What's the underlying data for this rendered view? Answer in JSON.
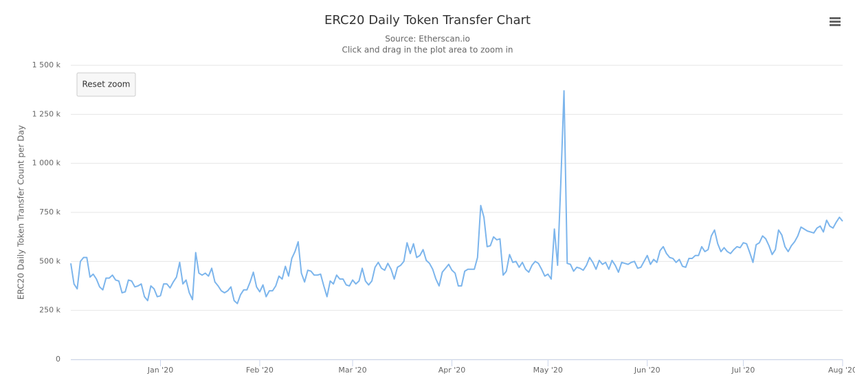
{
  "chart_data": {
    "type": "line",
    "title": "ERC20 Daily Token Transfer Chart",
    "subtitle": "Source: Etherscan.io",
    "hint": "Click and drag in the plot area to zoom in",
    "y_label": "ERC20 Daily Token Transfer Count per Day",
    "reset_button": "Reset zoom",
    "color": "#7cb5ec",
    "grid": true,
    "ylim": [
      0,
      1500000
    ],
    "yticks": [
      0,
      {
        "value": 250000,
        "label": "250 k"
      },
      {
        "value": 500000,
        "label": "500 k"
      },
      {
        "value": 750000,
        "label": "750 k"
      },
      {
        "value": 1000000,
        "label": "1 000 k"
      },
      {
        "value": 1250000,
        "label": "1 250 k"
      },
      {
        "value": 1500000,
        "label": "1 500 k"
      }
    ],
    "categories": [
      null,
      null,
      null,
      null,
      null,
      null,
      null,
      null,
      null,
      null,
      null,
      null,
      null,
      null,
      null,
      null,
      null,
      null,
      null,
      null,
      null,
      null,
      null,
      null,
      null,
      null,
      null,
      null,
      "Jan '20",
      null,
      null,
      null,
      null,
      null,
      null,
      null,
      null,
      null,
      null,
      null,
      null,
      null,
      null,
      null,
      null,
      null,
      null,
      null,
      null,
      null,
      null,
      null,
      null,
      null,
      null,
      null,
      null,
      null,
      null,
      "Feb '20",
      null,
      null,
      null,
      null,
      null,
      null,
      null,
      null,
      null,
      null,
      null,
      null,
      null,
      null,
      null,
      null,
      null,
      null,
      null,
      null,
      null,
      null,
      null,
      null,
      null,
      null,
      null,
      null,
      "Mar '20",
      null,
      null,
      null,
      null,
      null,
      null,
      null,
      null,
      null,
      null,
      null,
      null,
      null,
      null,
      null,
      null,
      null,
      null,
      null,
      null,
      null,
      null,
      null,
      null,
      null,
      null,
      null,
      null,
      null,
      null,
      "Apr '20",
      null,
      null,
      null,
      null,
      null,
      null,
      null,
      null,
      null,
      null,
      null,
      null,
      null,
      null,
      null,
      null,
      null,
      null,
      null,
      null,
      null,
      null,
      null,
      null,
      null,
      null,
      null,
      null,
      null,
      "May '20",
      null,
      null,
      null,
      null,
      null,
      null,
      null,
      null,
      null,
      null,
      null,
      null,
      null,
      null,
      null,
      null,
      null,
      null,
      null,
      null,
      null,
      null,
      null,
      null,
      null,
      null,
      null,
      null,
      null,
      null,
      "Jun '20",
      null,
      null,
      null,
      null,
      null,
      null,
      null,
      null,
      null,
      null,
      null,
      null,
      null,
      null,
      null,
      null,
      null,
      null,
      null,
      null,
      null,
      null,
      null,
      null,
      null,
      null,
      null,
      null,
      null,
      "Jul '20",
      null,
      null,
      null,
      null,
      null,
      null,
      null,
      null,
      null,
      null,
      null,
      null,
      null,
      null,
      null,
      null,
      null,
      null,
      null,
      null,
      null,
      null,
      null,
      null,
      null,
      null,
      null,
      null,
      null,
      null,
      "Aug '20"
    ],
    "values": [
      490000,
      385000,
      360000,
      500000,
      520000,
      520000,
      420000,
      435000,
      410000,
      370000,
      355000,
      415000,
      415000,
      430000,
      405000,
      400000,
      340000,
      345000,
      405000,
      400000,
      370000,
      375000,
      385000,
      320000,
      300000,
      375000,
      360000,
      320000,
      325000,
      385000,
      385000,
      365000,
      395000,
      420000,
      495000,
      385000,
      405000,
      340000,
      305000,
      545000,
      440000,
      430000,
      440000,
      425000,
      465000,
      395000,
      375000,
      350000,
      340000,
      350000,
      370000,
      300000,
      285000,
      330000,
      355000,
      355000,
      395000,
      445000,
      370000,
      345000,
      380000,
      320000,
      350000,
      350000,
      375000,
      425000,
      410000,
      475000,
      425000,
      515000,
      550000,
      600000,
      440000,
      395000,
      455000,
      450000,
      430000,
      430000,
      435000,
      375000,
      320000,
      400000,
      385000,
      430000,
      410000,
      410000,
      380000,
      375000,
      405000,
      385000,
      400000,
      465000,
      400000,
      380000,
      400000,
      470000,
      495000,
      465000,
      455000,
      490000,
      460000,
      410000,
      470000,
      480000,
      500000,
      595000,
      540000,
      590000,
      520000,
      530000,
      560000,
      505000,
      490000,
      460000,
      410000,
      375000,
      445000,
      465000,
      485000,
      455000,
      440000,
      375000,
      375000,
      450000,
      460000,
      460000,
      460000,
      520000,
      785000,
      725000,
      575000,
      580000,
      625000,
      610000,
      615000,
      430000,
      450000,
      535000,
      495000,
      500000,
      470000,
      495000,
      460000,
      445000,
      480000,
      500000,
      490000,
      460000,
      425000,
      435000,
      410000,
      665000,
      480000,
      900000,
      1370000,
      490000,
      485000,
      450000,
      470000,
      465000,
      455000,
      480000,
      520000,
      495000,
      460000,
      505000,
      485000,
      495000,
      460000,
      505000,
      480000,
      445000,
      495000,
      490000,
      485000,
      495000,
      500000,
      465000,
      470000,
      500000,
      530000,
      485000,
      510000,
      495000,
      555000,
      575000,
      540000,
      520000,
      515000,
      495000,
      510000,
      475000,
      470000,
      515000,
      515000,
      530000,
      530000,
      575000,
      550000,
      560000,
      630000,
      660000,
      590000,
      550000,
      570000,
      550000,
      540000,
      560000,
      575000,
      570000,
      595000,
      590000,
      545000,
      495000,
      585000,
      595000,
      630000,
      615000,
      580000,
      535000,
      560000,
      660000,
      635000,
      575000,
      550000,
      580000,
      600000,
      630000,
      675000,
      665000,
      655000,
      650000,
      645000,
      670000,
      680000,
      650000,
      710000,
      680000,
      670000,
      700000,
      725000,
      705000
    ]
  }
}
